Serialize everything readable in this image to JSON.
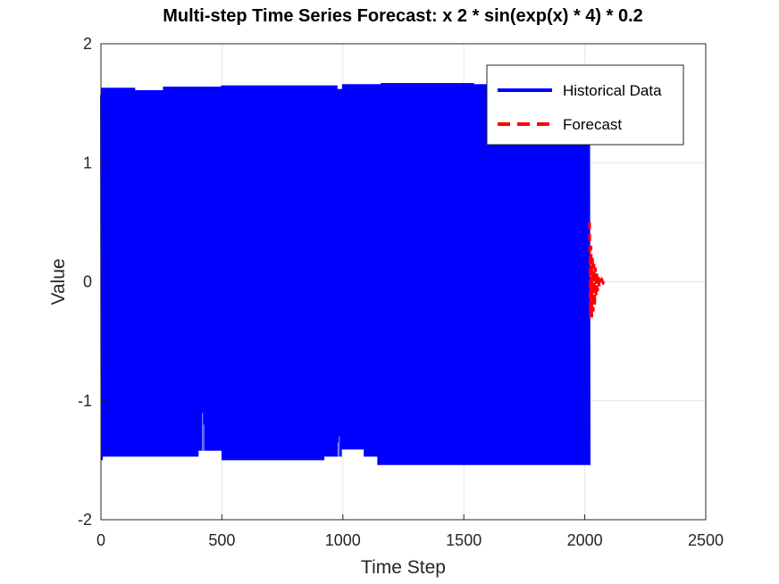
{
  "chart_data": {
    "type": "line",
    "title": "Multi-step Time Series Forecast: x  2 * sin(exp(x) * 4) * 0.2",
    "xlabel": "Time Step",
    "ylabel": "Value",
    "xlim": [
      0,
      2500
    ],
    "ylim": [
      -2,
      2
    ],
    "xticks": [
      "0",
      "500",
      "1000",
      "1500",
      "2000",
      "2500"
    ],
    "yticks": [
      "-2",
      "-1",
      "0",
      "1",
      "2"
    ],
    "grid": true,
    "legend_position": "top-right",
    "series": [
      {
        "name": "Historical Data",
        "color": "#0000ff",
        "style": "solid",
        "x_range": [
          1,
          2020
        ],
        "envelope_upper": [
          [
            1,
            1.57
          ],
          [
            5,
            1.63
          ],
          [
            130,
            1.63
          ],
          [
            140,
            1.61
          ],
          [
            255,
            1.61
          ],
          [
            260,
            1.64
          ],
          [
            500,
            1.65
          ],
          [
            970,
            1.65
          ],
          [
            975,
            1.62
          ],
          [
            990,
            1.62
          ],
          [
            1000,
            1.66
          ],
          [
            1150,
            1.66
          ],
          [
            1160,
            1.67
          ],
          [
            1530,
            1.67
          ],
          [
            1540,
            1.66
          ],
          [
            2020,
            1.66
          ]
        ],
        "envelope_lower": [
          [
            1,
            -1.5
          ],
          [
            5,
            -1.47
          ],
          [
            390,
            -1.47
          ],
          [
            400,
            -1.42
          ],
          [
            490,
            -1.42
          ],
          [
            500,
            -1.5
          ],
          [
            910,
            -1.5
          ],
          [
            920,
            -1.47
          ],
          [
            985,
            -1.47
          ],
          [
            995,
            -1.41
          ],
          [
            1080,
            -1.41
          ],
          [
            1090,
            -1.47
          ],
          [
            1140,
            -1.47
          ],
          [
            1145,
            -1.54
          ],
          [
            2020,
            -1.54
          ]
        ]
      },
      {
        "name": "Forecast",
        "color": "#ff0000",
        "style": "dashed",
        "x": [
          2020,
          2023,
          2026,
          2029,
          2032,
          2035,
          2038,
          2041,
          2044,
          2047,
          2050,
          2053,
          2056,
          2060,
          2064,
          2068,
          2072,
          2076,
          2080
        ],
        "y": [
          0.5,
          -0.3,
          0.3,
          -0.3,
          0.2,
          -0.25,
          0.15,
          -0.2,
          0.12,
          -0.12,
          0.08,
          -0.08,
          0.05,
          -0.04,
          0.03,
          -0.02,
          0.01,
          -0.01,
          0.0
        ]
      }
    ]
  }
}
